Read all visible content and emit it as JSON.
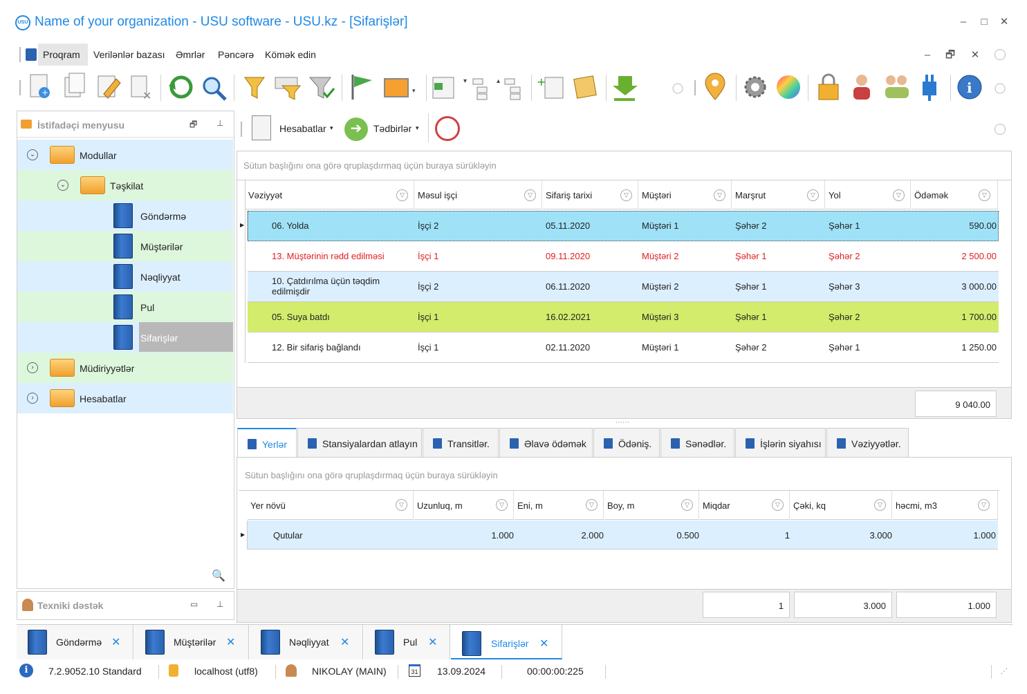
{
  "window": {
    "title": "Name of your organization - USU software - USU.kz - [Sifarişlər]",
    "logo_text": "USU",
    "controls": [
      "–",
      "□",
      "✕"
    ]
  },
  "menu": {
    "items": [
      "Proqram",
      "Verilənlər bazası",
      "Əmrlər",
      "Pəncərə",
      "Kömək edin"
    ],
    "right_controls": [
      "–",
      "🗗",
      "✕"
    ]
  },
  "toolbar": {
    "icons": [
      "add-record-icon",
      "copy-icon",
      "edit-icon",
      "delete-icon",
      "refresh-icon",
      "search-icon",
      "filter-icon",
      "filter-settings-icon",
      "filter-apply-icon",
      "flag-icon",
      "image-icon",
      "expand-icon",
      "tree-down-icon",
      "tree-up-icon",
      "add-row-icon",
      "notes-icon",
      "download-icon",
      "location-icon",
      "settings-icon",
      "color-wheel-icon",
      "lock-icon",
      "user-icon",
      "users-icon",
      "plugin-icon",
      "info-icon"
    ]
  },
  "left_panel": {
    "title": "İstifadəçi menyusu",
    "tree": {
      "modules": "Modullar",
      "organization": "Təşkilat",
      "items": [
        "Göndərmə",
        "Müştərilər",
        "Nəqliyyat",
        "Pul",
        "Sifarişlər"
      ],
      "directories": "Müdiriyyətlər",
      "reports": "Hesabatlar"
    },
    "support_title": "Texniki dəstək"
  },
  "sub_toolbar": {
    "reports": "Hesabatlar",
    "events": "Tədbirlər"
  },
  "grid": {
    "group_hint": "Sütun başlığını ona görə qruplaşdırmaq üçün buraya sürükləyin",
    "columns": [
      "Vəziyyət",
      "Məsul işçi",
      "Sifariş tarixi",
      "Müştəri",
      "Marşrut",
      "Yol",
      "Ödəmək"
    ],
    "rows": [
      {
        "status": "06. Yolda",
        "employee": "İşçi 2",
        "date": "05.11.2020",
        "customer": "Müştəri 1",
        "route": "Şəhər 2",
        "road": "Şəhər 1",
        "amount": "590.00"
      },
      {
        "status": "13. Müştərinin rədd edilməsi",
        "employee": "İşçi 1",
        "date": "09.11.2020",
        "customer": "Müştəri 2",
        "route": "Şəhər 1",
        "road": "Şəhər 2",
        "amount": "2 500.00"
      },
      {
        "status": "10. Çatdırılma üçün təqdim edilmişdir",
        "employee": "İşçi 2",
        "date": "06.11.2020",
        "customer": "Müştəri 2",
        "route": "Şəhər 1",
        "road": "Şəhər 3",
        "amount": "3 000.00"
      },
      {
        "status": "05. Suya batdı",
        "employee": "İşçi 1",
        "date": "16.02.2021",
        "customer": "Müştəri 3",
        "route": "Şəhər 1",
        "road": "Şəhər 2",
        "amount": "1 700.00"
      },
      {
        "status": "12. Bir sifariş bağlandı",
        "employee": "İşçi 1",
        "date": "02.11.2020",
        "customer": "Müştəri 1",
        "route": "Şəhər 2",
        "road": "Şəhər 1",
        "amount": "1 250.00"
      }
    ],
    "total": "9 040.00",
    "colors": {
      "selected": "#9fe2f8",
      "red_text": "#e02020",
      "green_row": "#d4ec6c",
      "alt_row": "#dcefff"
    }
  },
  "tabs": [
    "Yerlər",
    "Stansiyalardan atlayın",
    "Transitlər.",
    "Əlavə ödəmək",
    "Ödəniş.",
    "Sənədlər.",
    "İşlərin siyahısı",
    "Vəziyyətlər."
  ],
  "sub_grid": {
    "group_hint": "Sütun başlığını ona görə qruplaşdırmaq üçün buraya sürükləyin",
    "columns": [
      "Yer növü",
      "Uzunluq, m",
      "Eni, m",
      "Boy, m",
      "Miqdar",
      "Çəki, kq",
      "həcmi, m3"
    ],
    "rows": [
      {
        "type": "Qutular",
        "length": "1.000",
        "width": "2.000",
        "height": "0.500",
        "qty": "1",
        "weight": "3.000",
        "volume": "1.000"
      }
    ],
    "totals": {
      "qty": "1",
      "weight": "3.000",
      "volume": "1.000"
    }
  },
  "bottom_tabs": [
    "Göndərmə",
    "Müştərilər",
    "Nəqliyyat",
    "Pul",
    "Sifarişlər"
  ],
  "status_bar": {
    "version": "7.2.9052.10 Standard",
    "database": "localhost (utf8)",
    "user": "NIKOLAY (MAIN)",
    "date": "13.09.2024",
    "calendar_day": "31",
    "timer": "00:00:00:225"
  }
}
